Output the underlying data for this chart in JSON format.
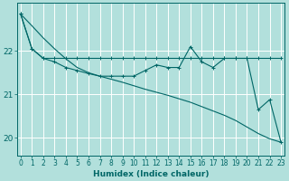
{
  "xlabel": "Humidex (Indice chaleur)",
  "background_color": "#b2e0dc",
  "grid_color": "#ffffff",
  "line_color": "#006666",
  "x_values": [
    0,
    1,
    2,
    3,
    4,
    5,
    6,
    7,
    8,
    9,
    10,
    11,
    12,
    13,
    14,
    15,
    16,
    17,
    18,
    19,
    20,
    21,
    22,
    23
  ],
  "line_flat_y": [
    22.85,
    22.05,
    21.83,
    21.83,
    21.83,
    21.83,
    21.83,
    21.83,
    21.83,
    21.83,
    21.83,
    21.83,
    21.83,
    21.83,
    21.83,
    21.83,
    21.83,
    21.83,
    21.83,
    21.83,
    21.83,
    21.83,
    21.83,
    21.83
  ],
  "line_zigzag_y": [
    22.85,
    22.05,
    21.83,
    21.75,
    21.62,
    21.55,
    21.48,
    21.42,
    21.42,
    21.42,
    21.42,
    21.55,
    21.68,
    21.62,
    21.62,
    22.1,
    21.75,
    21.62,
    21.83,
    21.83,
    21.83,
    20.65,
    20.88,
    19.9
  ],
  "line_straight_y": [
    22.85,
    22.58,
    22.3,
    22.05,
    21.82,
    21.62,
    21.5,
    21.42,
    21.35,
    21.28,
    21.2,
    21.12,
    21.05,
    20.98,
    20.9,
    20.82,
    20.72,
    20.62,
    20.52,
    20.4,
    20.25,
    20.1,
    19.98,
    19.9
  ],
  "ylim": [
    19.6,
    23.1
  ],
  "yticks": [
    20,
    21,
    22
  ],
  "xlim": [
    -0.3,
    23.3
  ],
  "xtick_fontsize": 5.5,
  "ytick_fontsize": 6.5
}
